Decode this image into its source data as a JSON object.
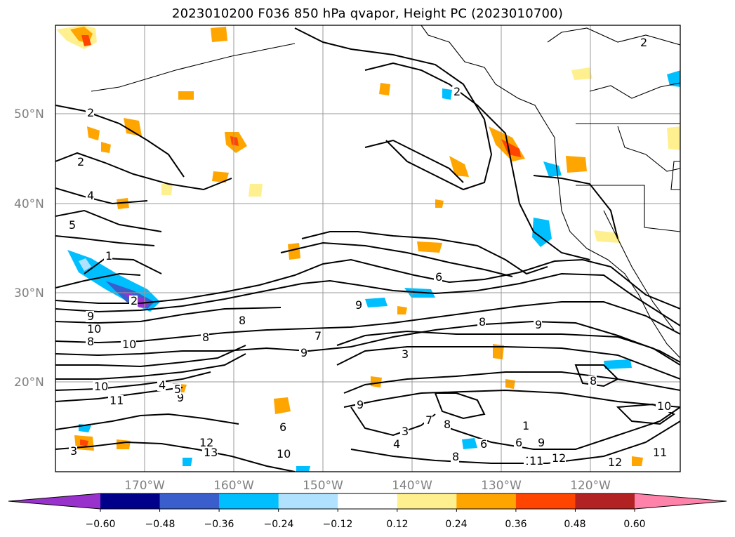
{
  "title": "2023010200 F036 850 hPa qvapor, Height PC (2023010700)",
  "lat_labels": [
    "50°N",
    "40°N",
    "30°N",
    "20°N"
  ],
  "lon_labels": [
    "170°W",
    "160°W",
    "150°W",
    "140°W",
    "130°W",
    "120°W"
  ],
  "colorbar": {
    "colors": [
      "#9932cc",
      "#00008b",
      "#3a5fcd",
      "#00bfff",
      "#b0e2ff",
      "#ffffff",
      "#fff08f",
      "#ffa500",
      "#ff4500",
      "#b22222",
      "#ff82ab"
    ],
    "ticks": [
      "−0.60",
      "−0.48",
      "−0.36",
      "−0.24",
      "−0.12",
      "0.12",
      "0.24",
      "0.36",
      "0.48",
      "0.60"
    ]
  },
  "contour_labels": [
    "2",
    "2",
    "4",
    "5",
    "1",
    "2",
    "9",
    "10",
    "8",
    "10",
    "8",
    "9",
    "8",
    "9",
    "7",
    "10",
    "3",
    "8",
    "6",
    "9",
    "10",
    "4",
    "3",
    "7",
    "8",
    "6",
    "9",
    "12",
    "13",
    "10",
    "11",
    "12",
    "6",
    "4",
    "5",
    "3",
    "2",
    "9",
    "8",
    "11",
    "11",
    "12",
    "6",
    "1",
    "9",
    "8",
    "10",
    "11",
    "2"
  ]
}
